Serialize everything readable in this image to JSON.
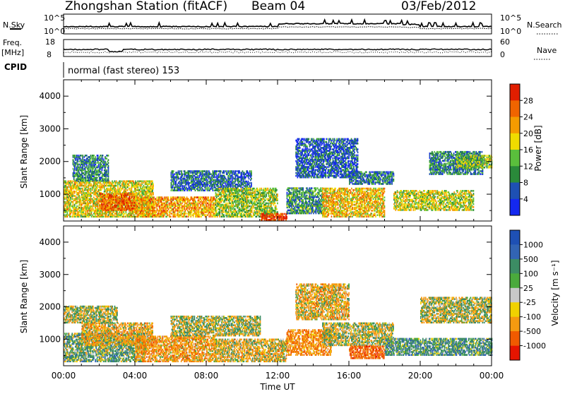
{
  "header": {
    "title": "Zhongshan Station (fitACF)",
    "beam": "Beam 04",
    "date": "03/Feb/2012"
  },
  "panels": {
    "nsky_label": "N.Sky",
    "nsearch_label": "N.Search",
    "noise_ticks": [
      "10^5",
      "10^0"
    ],
    "freq_label": "Freq.",
    "freq_unit": "[MHz]",
    "freq_ticks": [
      "18",
      "8"
    ],
    "nave_label": "Nave",
    "nave_ticks": [
      "60",
      "0"
    ],
    "cpid_label": "CPID",
    "cpid_value": "normal (fast stereo) 153"
  },
  "colors": {
    "power_scale": [
      "#1428f0",
      "#1e50b4",
      "#2a8a3a",
      "#5abe3c",
      "#f0dc00",
      "#f59b00",
      "#f06400",
      "#e11e00"
    ],
    "velocity_scale": [
      "#e61400",
      "#f05a00",
      "#f59a10",
      "#f0d200",
      "#c8c8c8",
      "#4aaa3c",
      "#3c8c64",
      "#3264b4",
      "#1e50b4"
    ],
    "grey_flag": "#c8c8c8"
  },
  "chart_data": [
    {
      "type": "heatmap",
      "name": "power",
      "ylabel": "Slant Range [km]",
      "ylim": [
        180,
        4500
      ],
      "yticks": [
        1000,
        2000,
        3000,
        4000
      ],
      "xlim": [
        0,
        24
      ],
      "xticks": [
        "00:00",
        "04:00",
        "08:00",
        "12:00",
        "16:00",
        "20:00",
        "00:00"
      ],
      "colorbar": {
        "label": "Power [dB]",
        "range": [
          0,
          32
        ],
        "ticks": [
          4,
          8,
          12,
          16,
          20,
          24,
          28
        ]
      },
      "regions": [
        {
          "t0": 0.0,
          "t1": 5.0,
          "r0": 300,
          "r1": 1400,
          "value": 18
        },
        {
          "t0": 0.5,
          "t1": 2.5,
          "r0": 1400,
          "r1": 2200,
          "value": 9
        },
        {
          "t0": 2.0,
          "t1": 4.0,
          "r0": 500,
          "r1": 1000,
          "value": 26
        },
        {
          "t0": 4.0,
          "t1": 8.5,
          "r0": 300,
          "r1": 900,
          "value": 22
        },
        {
          "t0": 6.0,
          "t1": 10.5,
          "r0": 1100,
          "r1": 1700,
          "value": 7
        },
        {
          "t0": 8.5,
          "t1": 12.0,
          "r0": 300,
          "r1": 1200,
          "value": 15
        },
        {
          "t0": 11.0,
          "t1": 12.5,
          "r0": 200,
          "r1": 400,
          "value": 29
        },
        {
          "t0": 12.5,
          "t1": 14.5,
          "r0": 400,
          "r1": 1200,
          "value": 10
        },
        {
          "t0": 14.5,
          "t1": 18.0,
          "r0": 300,
          "r1": 1200,
          "value": 20
        },
        {
          "t0": 16.0,
          "t1": 18.5,
          "r0": 1300,
          "r1": 1700,
          "value": 8
        },
        {
          "t0": 18.5,
          "t1": 23.0,
          "r0": 500,
          "r1": 1100,
          "value": 17
        },
        {
          "t0": 20.5,
          "t1": 23.5,
          "r0": 1600,
          "r1": 2300,
          "value": 9
        },
        {
          "t0": 22.0,
          "t1": 24.0,
          "r0": 1800,
          "r1": 2200,
          "value": 14
        },
        {
          "t0": 13.0,
          "t1": 16.5,
          "r0": 1500,
          "r1": 2700,
          "value": 6
        }
      ]
    },
    {
      "type": "heatmap",
      "name": "velocity",
      "ylabel": "Slant Range [km]",
      "ylim": [
        180,
        4500
      ],
      "yticks": [
        1000,
        2000,
        3000,
        4000
      ],
      "xlim": [
        0,
        24
      ],
      "xticks": [
        "00:00",
        "04:00",
        "08:00",
        "12:00",
        "16:00",
        "20:00",
        "00:00"
      ],
      "xlabel": "Time UT",
      "colorbar": {
        "label": "Velocity [m s⁻¹]",
        "range": [
          -1200,
          1200
        ],
        "ticks": [
          "1000",
          "500",
          "100",
          "25",
          "-25",
          "-100",
          "-500",
          "-1000"
        ]
      },
      "regions": [
        {
          "t0": 0.0,
          "t1": 4.5,
          "r0": 300,
          "r1": 1200,
          "value": 200
        },
        {
          "t0": 1.0,
          "t1": 5.0,
          "r0": 800,
          "r1": 1500,
          "value": -200
        },
        {
          "t0": 4.0,
          "t1": 8.5,
          "r0": 300,
          "r1": 1100,
          "value": -300
        },
        {
          "t0": 6.0,
          "t1": 11.0,
          "r0": 1100,
          "r1": 1700,
          "value": 0
        },
        {
          "t0": 8.5,
          "t1": 12.5,
          "r0": 300,
          "r1": 1000,
          "value": -150
        },
        {
          "t0": 12.5,
          "t1": 15.0,
          "r0": 500,
          "r1": 1300,
          "value": -400
        },
        {
          "t0": 14.5,
          "t1": 18.5,
          "r0": 800,
          "r1": 1500,
          "value": 0
        },
        {
          "t0": 16.0,
          "t1": 18.0,
          "r0": 400,
          "r1": 800,
          "value": -700
        },
        {
          "t0": 18.0,
          "t1": 24.0,
          "r0": 500,
          "r1": 1000,
          "value": 300
        },
        {
          "t0": 20.0,
          "t1": 24.0,
          "r0": 1500,
          "r1": 2300,
          "value": 0
        },
        {
          "t0": 13.0,
          "t1": 16.0,
          "r0": 1600,
          "r1": 2700,
          "value": -200
        },
        {
          "t0": 0.0,
          "t1": 3.0,
          "r0": 1500,
          "r1": 2000,
          "value": 0
        }
      ]
    }
  ]
}
